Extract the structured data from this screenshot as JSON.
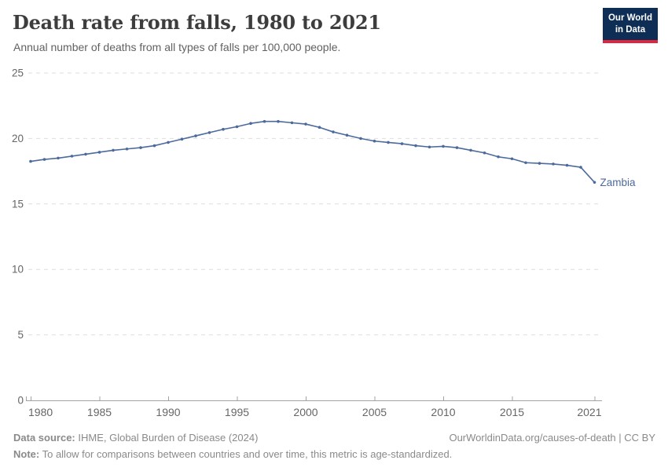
{
  "header": {
    "title": "Death rate from falls, 1980 to 2021",
    "subtitle": "Annual number of deaths from all types of falls per 100,000 people.",
    "logo": {
      "line1": "Our World",
      "line2": "in Data",
      "bg_color": "#0f2e55",
      "accent_color": "#e02540"
    }
  },
  "chart_data": {
    "type": "line",
    "title": "Death rate from falls, 1980 to 2021",
    "xlabel": "",
    "ylabel": "",
    "ylim": [
      0,
      25
    ],
    "yticks": [
      0,
      5,
      10,
      15,
      20,
      25
    ],
    "xticks": [
      1980,
      1985,
      1990,
      1995,
      2000,
      2005,
      2010,
      2015,
      2021
    ],
    "grid": "horizontal dashed",
    "legend_position": "end-of-line label",
    "x": [
      1980,
      1981,
      1982,
      1983,
      1984,
      1985,
      1986,
      1987,
      1988,
      1989,
      1990,
      1991,
      1992,
      1993,
      1994,
      1995,
      1996,
      1997,
      1998,
      1999,
      2000,
      2001,
      2002,
      2003,
      2004,
      2005,
      2006,
      2007,
      2008,
      2009,
      2010,
      2011,
      2012,
      2013,
      2014,
      2015,
      2016,
      2017,
      2018,
      2019,
      2020,
      2021
    ],
    "series": [
      {
        "name": "Zambia",
        "color": "#4c6a9c",
        "values": [
          18.25,
          18.4,
          18.5,
          18.65,
          18.8,
          18.95,
          19.1,
          19.2,
          19.3,
          19.45,
          19.7,
          19.95,
          20.2,
          20.45,
          20.7,
          20.9,
          21.15,
          21.3,
          21.3,
          21.2,
          21.1,
          20.85,
          20.5,
          20.25,
          20.0,
          19.8,
          19.7,
          19.6,
          19.45,
          19.35,
          19.4,
          19.3,
          19.1,
          18.9,
          18.6,
          18.45,
          18.15,
          18.1,
          18.05,
          17.95,
          17.8,
          16.65
        ]
      }
    ],
    "colors": {
      "grid": "#dedede",
      "axis": "#a3a3a3",
      "tick_label": "#666666"
    }
  },
  "footer": {
    "datasource_label": "Data source:",
    "datasource_value": " IHME, Global Burden of Disease (2024)",
    "link": "OurWorldinData.org/causes-of-death | CC BY",
    "note_label": "Note:",
    "note_value": " To allow for comparisons between countries and over time, this metric is age-standardized."
  }
}
